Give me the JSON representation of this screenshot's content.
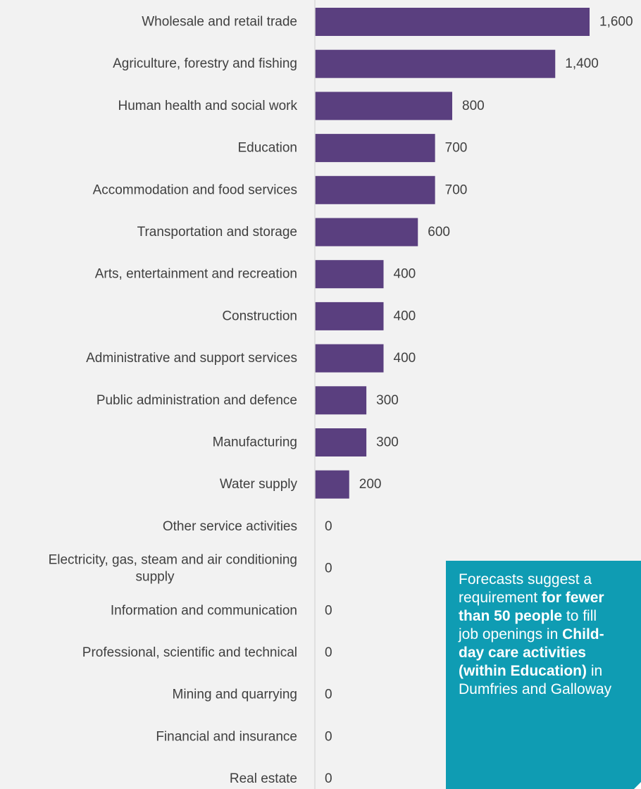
{
  "chart_data": {
    "type": "bar",
    "orientation": "horizontal",
    "categories": [
      "Wholesale and retail trade",
      "Agriculture, forestry and fishing",
      "Human health and social work",
      "Education",
      "Accommodation and food services",
      "Transportation and storage",
      "Arts, entertainment and recreation",
      "Construction",
      "Administrative and support services",
      "Public administration and defence",
      "Manufacturing",
      "Water supply",
      "Other service activities",
      "Electricity, gas, steam and air conditioning supply",
      "Information and communication",
      "Professional, scientific and technical",
      "Mining and quarrying",
      "Financial and insurance",
      "Real estate"
    ],
    "category_lines": [
      [
        "Wholesale and retail trade"
      ],
      [
        "Agriculture, forestry and fishing"
      ],
      [
        "Human health and social work"
      ],
      [
        "Education"
      ],
      [
        "Accommodation and food services"
      ],
      [
        "Transportation and storage"
      ],
      [
        "Arts, entertainment and recreation"
      ],
      [
        "Construction"
      ],
      [
        "Administrative and support services"
      ],
      [
        "Public administration and defence"
      ],
      [
        "Manufacturing"
      ],
      [
        "Water supply"
      ],
      [
        "Other service activities"
      ],
      [
        "Electricity, gas, steam and air conditioning",
        "supply"
      ],
      [
        "Information and communication"
      ],
      [
        "Professional, scientific and technical"
      ],
      [
        "Mining and quarrying"
      ],
      [
        "Financial and insurance"
      ],
      [
        "Real estate"
      ]
    ],
    "values": [
      1600,
      1400,
      800,
      700,
      700,
      600,
      400,
      400,
      400,
      300,
      300,
      200,
      0,
      0,
      0,
      0,
      0,
      0,
      0
    ],
    "value_labels": [
      "1,600",
      "1,400",
      "800",
      "700",
      "700",
      "600",
      "400",
      "400",
      "400",
      "300",
      "300",
      "200",
      "0",
      "0",
      "0",
      "0",
      "0",
      "0",
      "0"
    ],
    "xlim": [
      0,
      1600
    ],
    "grid": false,
    "legend": "none",
    "title": "",
    "xlabel": "",
    "ylabel": ""
  },
  "colors": {
    "bar": "#5a3f7f",
    "axis": "#d9d9d9",
    "background": "#f2f2f2",
    "callout": "#0f9cb3"
  },
  "callout": {
    "t1": "Forecasts suggest a",
    "t2": "requirement ",
    "b1": "for fewer",
    "b2": "than 50 people",
    "t3": " to fill",
    "t4": "job openings in ",
    "b3": "Child-",
    "b4": "day care activities",
    "b5": "(within Education)",
    "t5": " in",
    "t6": "Dumfries and Galloway"
  }
}
